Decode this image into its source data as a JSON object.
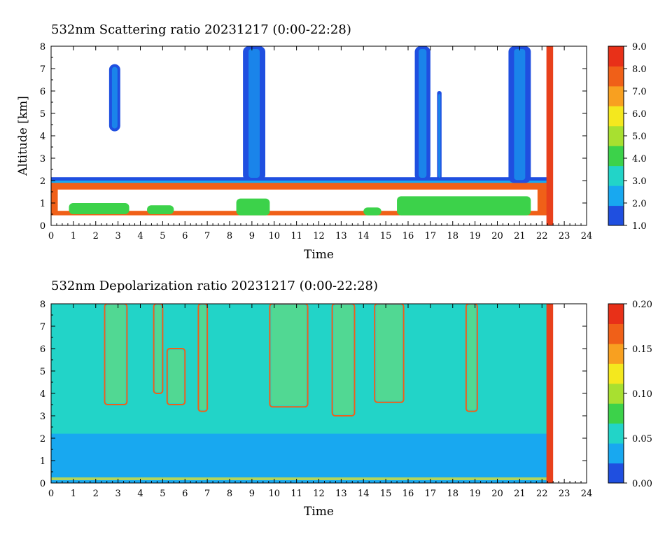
{
  "chart_data": [
    {
      "type": "heatmap",
      "title": "532nm Scattering ratio  20231217 (0:00-22:28)",
      "xlabel": "Time",
      "ylabel": "Altitude [km]",
      "xlim": [
        0,
        24
      ],
      "ylim": [
        0,
        8
      ],
      "xticks": [
        "0",
        "1",
        "2",
        "3",
        "4",
        "5",
        "6",
        "7",
        "8",
        "9",
        "10",
        "11",
        "12",
        "13",
        "14",
        "15",
        "16",
        "17",
        "18",
        "19",
        "20",
        "21",
        "22",
        "23",
        "24"
      ],
      "yticks": [
        "0",
        "1",
        "2",
        "3",
        "4",
        "5",
        "6",
        "7",
        "8"
      ],
      "colorbar": {
        "range": [
          1.0,
          9.0
        ],
        "ticks": [
          "1.0",
          "2.0",
          "3.0",
          "4.0",
          "5.0",
          "6.0",
          "7.0",
          "8.0",
          "9.0"
        ]
      },
      "colormap": [
        "#1f4fe0",
        "#18a8f0",
        "#22d4c8",
        "#3cd24a",
        "#a8e030",
        "#f4e81e",
        "#f8a020",
        "#f06018",
        "#e83018"
      ],
      "data_end_time": 22.47,
      "gap_marker": {
        "x": [
          22.2,
          22.5
        ],
        "color": "#e8401c"
      },
      "features": [
        {
          "x": [
            2.6,
            3.1
          ],
          "y": [
            4.2,
            7.2
          ],
          "value": 1.6
        },
        {
          "x": [
            8.6,
            9.6
          ],
          "y": [
            2.0,
            8.0
          ],
          "value": 1.8
        },
        {
          "x": [
            16.3,
            17.0
          ],
          "y": [
            2.0,
            8.0
          ],
          "value": 1.7
        },
        {
          "x": [
            17.3,
            17.5
          ],
          "y": [
            2.0,
            6.0
          ],
          "value": 1.6
        },
        {
          "x": [
            20.5,
            21.5
          ],
          "y": [
            1.9,
            8.0
          ],
          "value": 1.8
        }
      ]
    },
    {
      "type": "heatmap",
      "title": "532nm Depolarization ratio  20231217 (0:00-22:28)",
      "xlabel": "Time",
      "ylabel": "",
      "xlim": [
        0,
        24
      ],
      "ylim": [
        0,
        8
      ],
      "xticks": [
        "0",
        "1",
        "2",
        "3",
        "4",
        "5",
        "6",
        "7",
        "8",
        "9",
        "10",
        "11",
        "12",
        "13",
        "14",
        "15",
        "16",
        "17",
        "18",
        "19",
        "20",
        "21",
        "22",
        "23",
        "24"
      ],
      "yticks": [
        "0",
        "1",
        "2",
        "3",
        "4",
        "5",
        "6",
        "7",
        "8"
      ],
      "colorbar": {
        "range": [
          0.0,
          0.2
        ],
        "ticks": [
          "0.00",
          "0.05",
          "0.10",
          "0.15",
          "0.20"
        ]
      },
      "colormap": [
        "#1f4fe0",
        "#18a8f0",
        "#22d4c8",
        "#3cd24a",
        "#a8e030",
        "#f4e81e",
        "#f8a020",
        "#f06018",
        "#e83018"
      ],
      "data_end_time": 22.47,
      "gap_marker": {
        "x": [
          22.2,
          22.5
        ],
        "color": "#e8401c"
      },
      "background_value": 0.06
    }
  ]
}
